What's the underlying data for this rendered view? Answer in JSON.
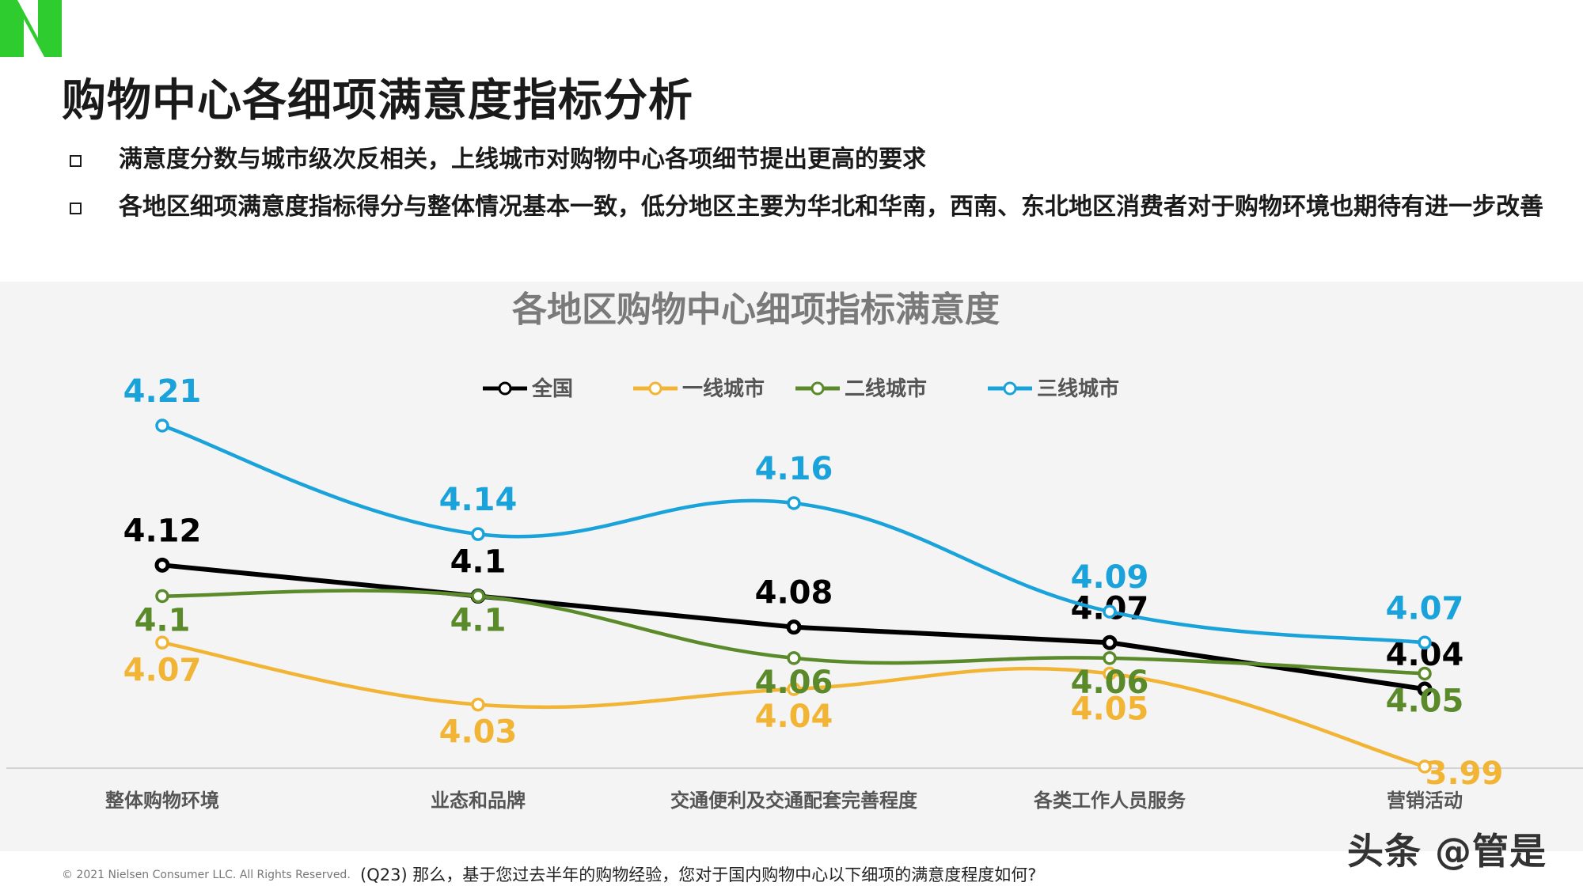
{
  "header": {
    "title": "购物中心各细项满意度指标分析",
    "bullets": [
      "满意度分数与城市级次反相关，上线城市对购物中心各项细节提出更高的要求",
      "各地区细项满意度指标得分与整体情况基本一致，低分地区主要为华北和华南，西南、东北地区消费者对于购物环境也期待有进一步改善"
    ]
  },
  "colors": {
    "national": "#000000",
    "tier1": "#F2B435",
    "tier2": "#5A8A2A",
    "tier3": "#1AA3DA",
    "logo": "#2ECC2E"
  },
  "chart_data": {
    "type": "line",
    "title": "各地区购物中心细项指标满意度",
    "categories": [
      "整体购物环境",
      "业态和品牌",
      "交通便利及交通配套完善程度",
      "各类工作人员服务",
      "营销活动"
    ],
    "series": [
      {
        "name": "全国",
        "values": [
          4.12,
          4.1,
          4.08,
          4.07,
          4.04
        ]
      },
      {
        "name": "一线城市",
        "values": [
          4.07,
          4.03,
          4.04,
          4.05,
          3.99
        ]
      },
      {
        "name": "二线城市",
        "values": [
          4.1,
          4.1,
          4.06,
          4.06,
          4.05
        ]
      },
      {
        "name": "三线城市",
        "values": [
          4.21,
          4.14,
          4.16,
          4.09,
          4.07
        ]
      }
    ],
    "legend": "top-center",
    "grid": false
  },
  "footer": {
    "copyright": "© 2021 Nielsen Consumer LLC. All Rights Reserved.",
    "note": "(Q23) 那么，基于您过去半年的购物经验，您对于国内购物中心以下细项的满意度程度如何?",
    "watermark": "头条 @管是"
  }
}
